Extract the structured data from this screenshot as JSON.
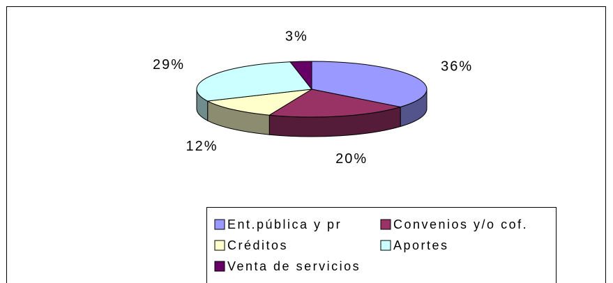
{
  "chart_data": {
    "type": "pie",
    "categories": [
      "Ent.pública y pr",
      "Convenios y/o cof.",
      "Créditos",
      "Aportes",
      "Venta de servicios"
    ],
    "values": [
      36,
      20,
      12,
      29,
      3
    ],
    "value_labels": [
      "36%",
      "20%",
      "12%",
      "29%",
      "3%"
    ],
    "colors": [
      "#9999ff",
      "#993366",
      "#ffffcc",
      "#ccffff",
      "#660066"
    ],
    "legend": "bottom"
  }
}
